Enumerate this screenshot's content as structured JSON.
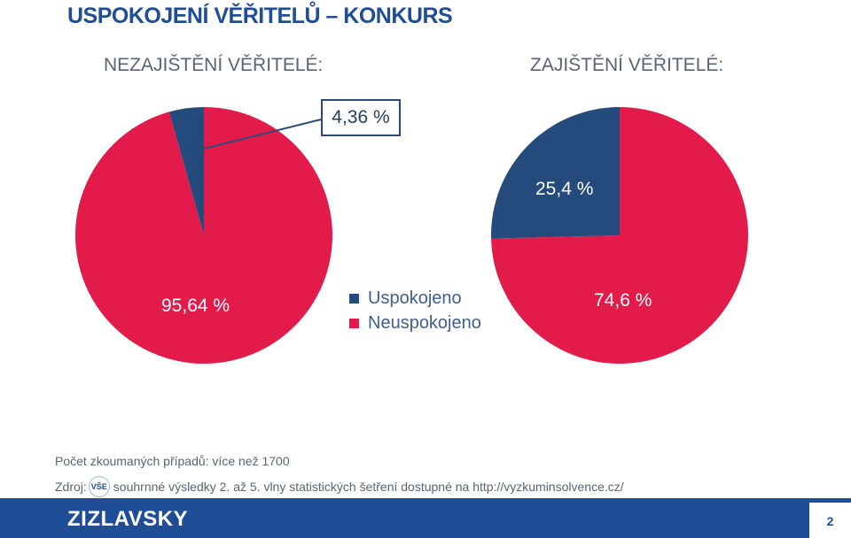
{
  "title": "USPOKOJENÍ VĚŘITELŮ – KONKURS",
  "colors": {
    "accent": "#1f4e96",
    "satisfied": "#254a7c",
    "unsatisfied": "#e31b4b"
  },
  "chart_data": [
    {
      "type": "pie",
      "title": "NEZAJIŠTĚNÍ VĚŘITELÉ:",
      "slices": [
        {
          "name": "Uspokojeno",
          "value": 4.36,
          "label": "4,36 %"
        },
        {
          "name": "Neuspokojeno",
          "value": 95.64,
          "label": "95,64 %"
        }
      ]
    },
    {
      "type": "pie",
      "title": "ZAJIŠTĚNÍ VĚŘITELÉ:",
      "slices": [
        {
          "name": "Uspokojeno",
          "value": 25.4,
          "label": "25,4 %"
        },
        {
          "name": "Neuspokojeno",
          "value": 74.6,
          "label": "74,6 %"
        }
      ]
    }
  ],
  "legend": [
    {
      "label": "Uspokojeno",
      "color": "#254a7c"
    },
    {
      "label": "Neuspokojeno",
      "color": "#e31b4b"
    }
  ],
  "notes": {
    "cases": "Počet zkoumaných případů: více než 1700",
    "source_prefix": "Zdroj:",
    "logo_text": "VŠE",
    "source_text": "souhrnné výsledky 2. až 5. vlny statistických šetření dostupné na http://vyzkuminsolvence.cz/"
  },
  "footer": {
    "brand": "ZIZLAVSKY",
    "page_number": "2"
  }
}
